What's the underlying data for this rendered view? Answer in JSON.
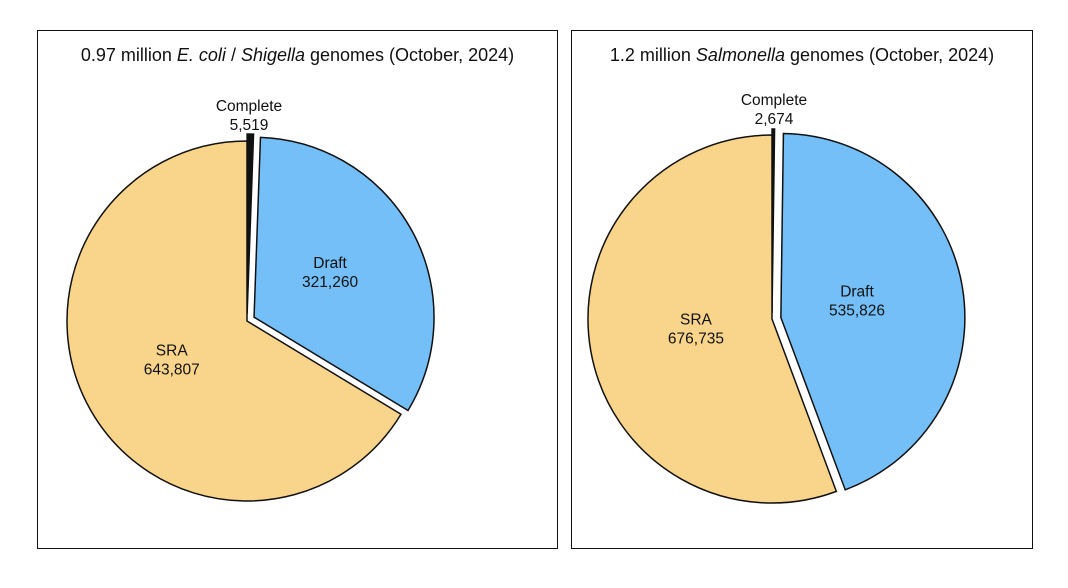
{
  "colors": {
    "sra": "#f8d58b",
    "draft": "#74bff8",
    "complete": "#111111",
    "outline": "#111111"
  },
  "chart_data": [
    {
      "type": "pie",
      "title": {
        "prefix": "0.97 million ",
        "italic_1": "E. coli",
        "middle": " / ",
        "italic_2": "Shigella",
        "suffix": " genomes (October, 2024)"
      },
      "slices": [
        {
          "label": "Complete",
          "value": 5519,
          "value_text": "5,519"
        },
        {
          "label": "Draft",
          "value": 321260,
          "value_text": "321,260"
        },
        {
          "label": "SRA",
          "value": 643807,
          "value_text": "643,807"
        }
      ]
    },
    {
      "type": "pie",
      "title": {
        "prefix": "1.2 million ",
        "italic_1": "Salmonella",
        "middle": " genomes (October, 2024)",
        "italic_2": "",
        "suffix": ""
      },
      "slices": [
        {
          "label": "Complete",
          "value": 2674,
          "value_text": "2,674"
        },
        {
          "label": "Draft",
          "value": 535826,
          "value_text": "535,826"
        },
        {
          "label": "SRA",
          "value": 676735,
          "value_text": "676,735"
        }
      ]
    }
  ]
}
